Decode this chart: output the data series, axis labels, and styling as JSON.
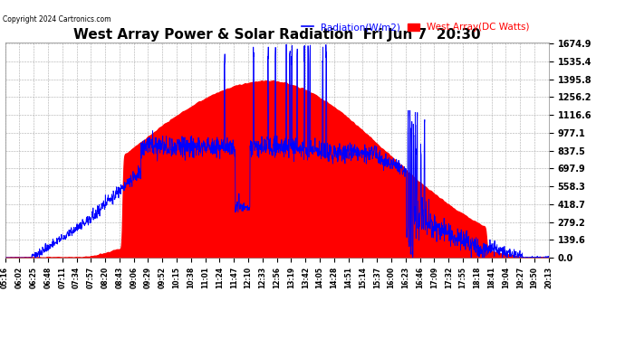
{
  "title": "West Array Power & Solar Radiation  Fri Jun 7  20:30",
  "copyright": "Copyright 2024 Cartronics.com",
  "legend_radiation": "Radiation(W/m2)",
  "legend_west": "West Array(DC Watts)",
  "legend_radiation_color": "blue",
  "legend_west_color": "red",
  "yticks": [
    0.0,
    139.6,
    279.2,
    418.7,
    558.3,
    697.9,
    837.5,
    977.1,
    1116.6,
    1256.2,
    1395.8,
    1535.4,
    1674.9
  ],
  "ymax": 1674.9,
  "ymin": 0.0,
  "background_color": "#ffffff",
  "plot_bg_color": "#ffffff",
  "grid_color": "#aaaaaa",
  "fill_color": "#ff0000",
  "line_color": "#0000ff",
  "title_fontsize": 11,
  "xtick_labels": [
    "05:16",
    "06:02",
    "06:25",
    "06:48",
    "07:11",
    "07:34",
    "07:57",
    "08:20",
    "08:43",
    "09:06",
    "09:29",
    "09:52",
    "10:15",
    "10:38",
    "11:01",
    "11:24",
    "11:47",
    "12:10",
    "12:33",
    "12:56",
    "13:19",
    "13:42",
    "14:05",
    "14:28",
    "14:51",
    "15:14",
    "15:37",
    "16:00",
    "16:23",
    "16:46",
    "17:09",
    "17:32",
    "17:55",
    "18:18",
    "18:41",
    "19:04",
    "19:27",
    "19:50",
    "20:13"
  ]
}
